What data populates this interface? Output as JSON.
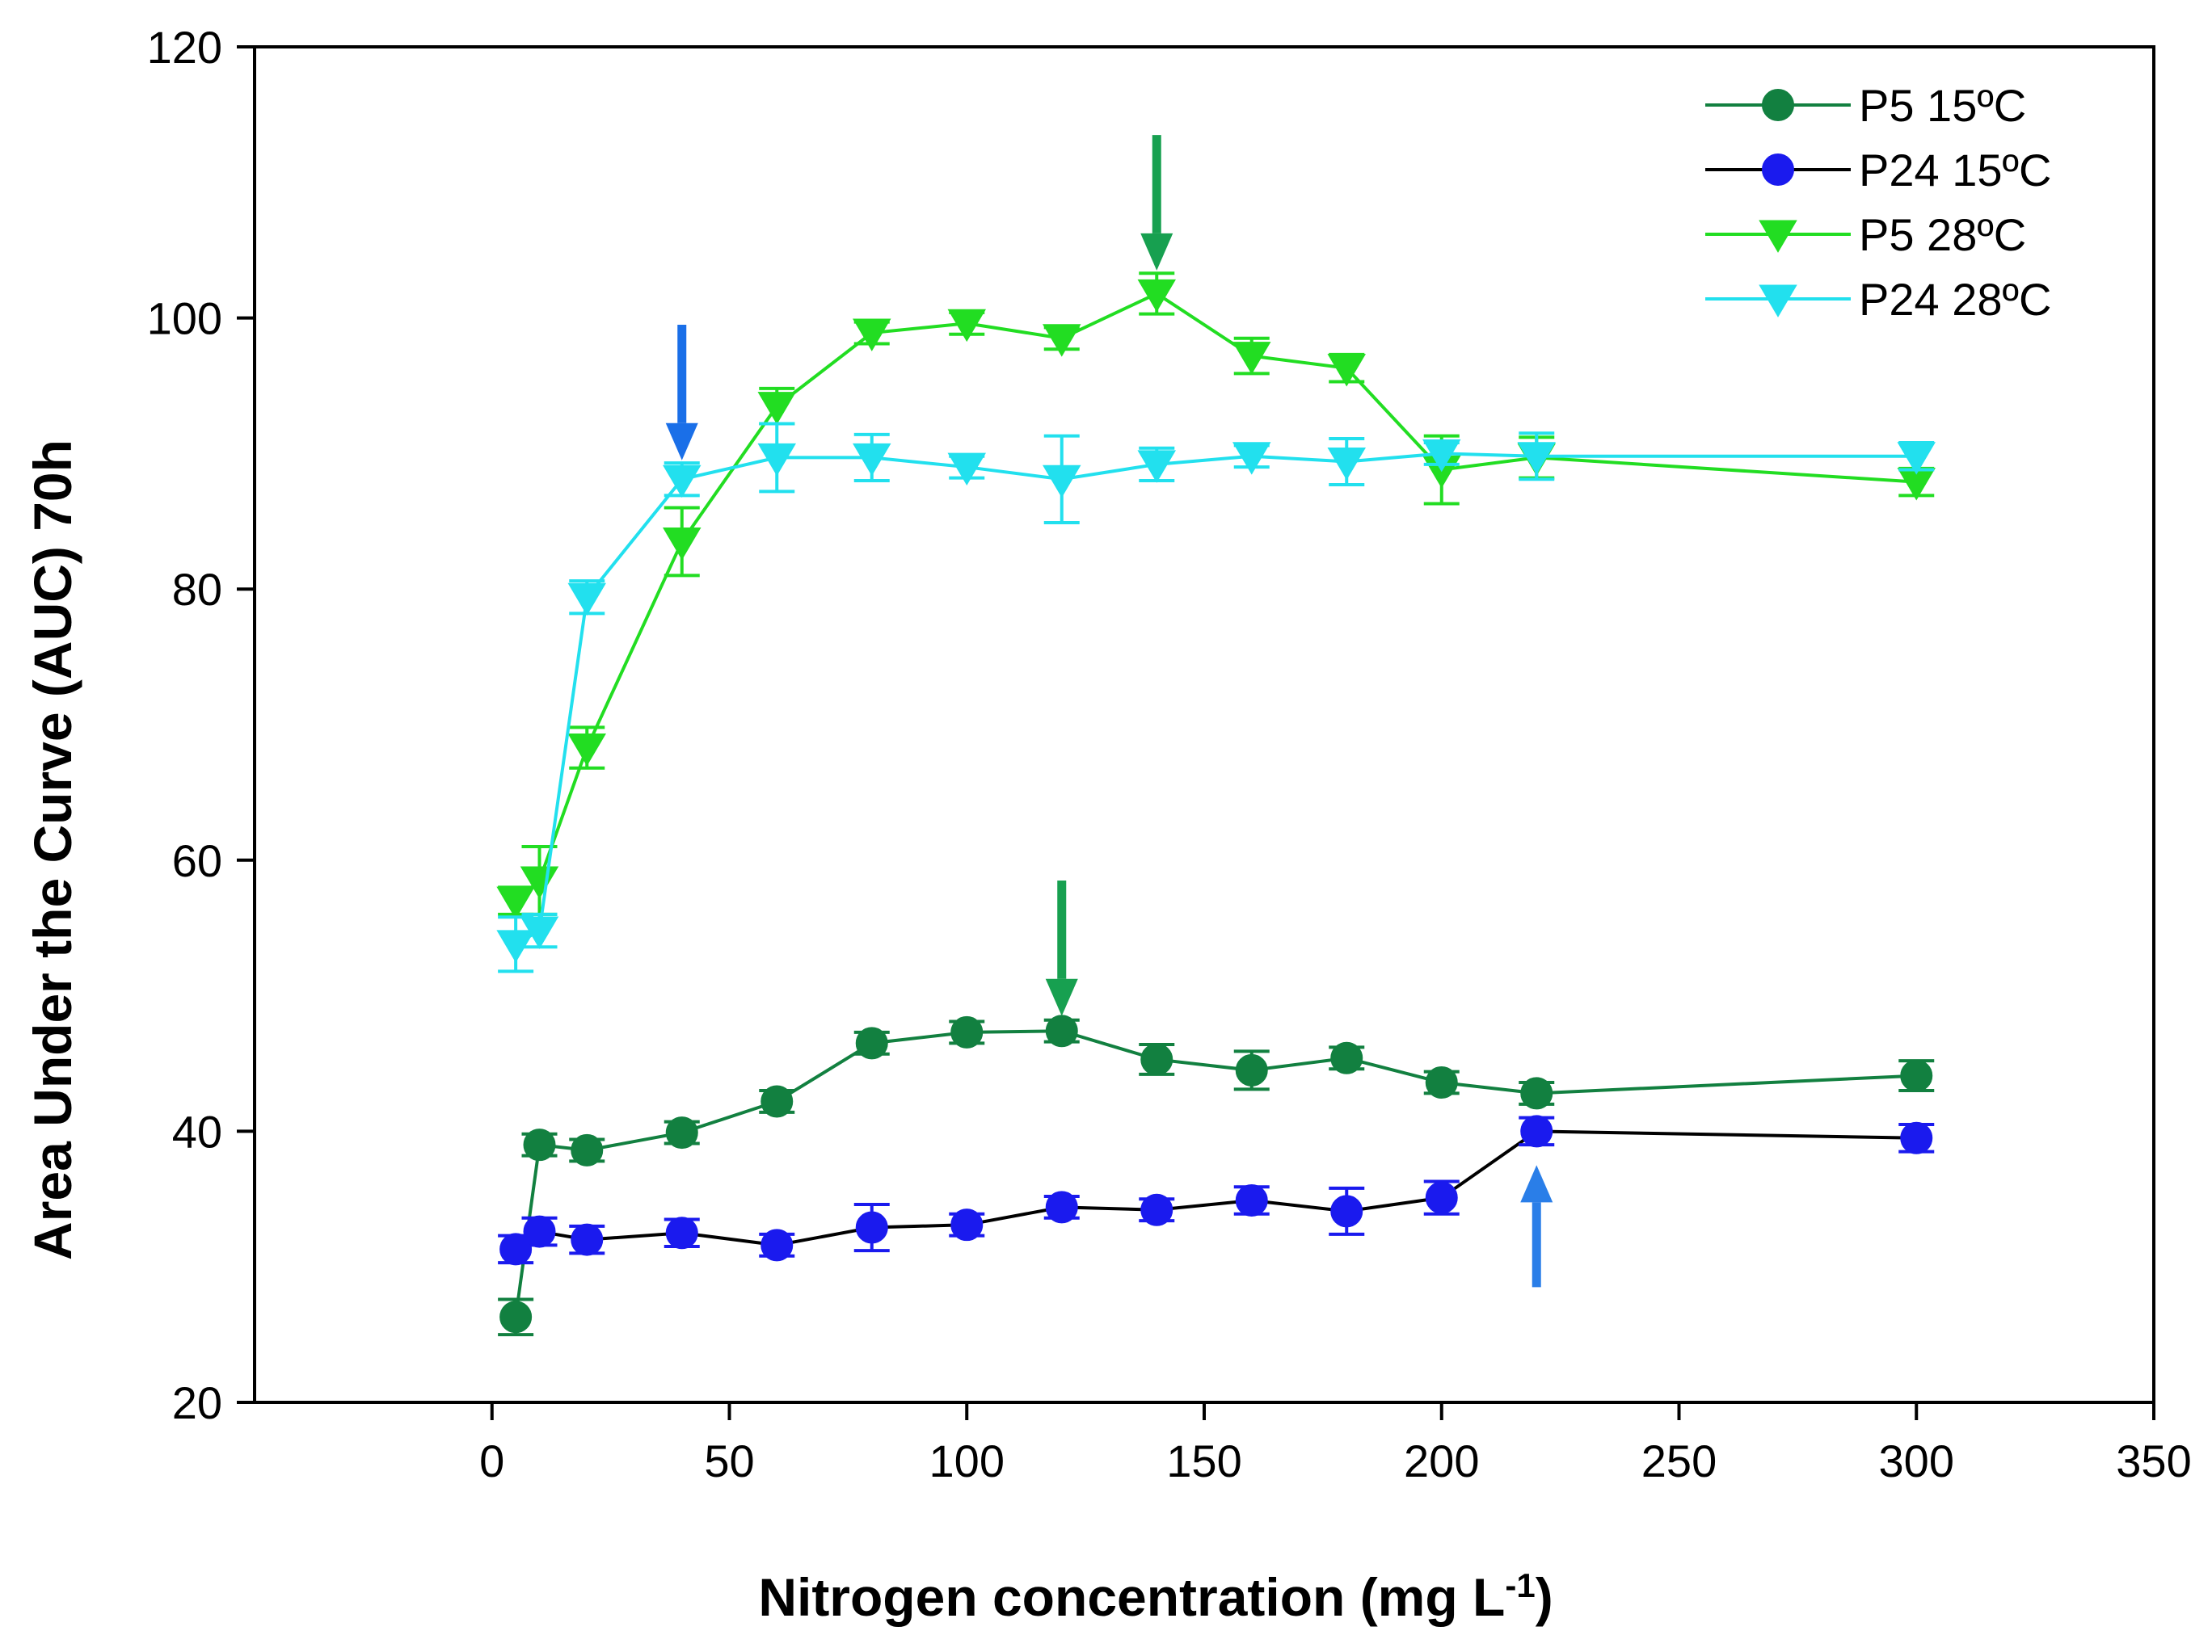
{
  "chart_data": {
    "type": "line",
    "title": "",
    "xlabel": "Nitrogen concentration (mg L",
    "xlabel_sup": "-1",
    "xlabel_end": ")",
    "ylabel": "Area Under the Curve (AUC) 70h",
    "xlim": [
      -50,
      350
    ],
    "ylim": [
      20,
      120
    ],
    "xticks": [
      0,
      50,
      100,
      150,
      200,
      250,
      300,
      350
    ],
    "yticks": [
      20,
      40,
      60,
      80,
      100,
      120
    ],
    "grid": false,
    "legend_position": "top-right",
    "series": [
      {
        "name": "P5 15ºC",
        "color": "#128040",
        "marker": "circle",
        "x": [
          5,
          10,
          20,
          40,
          60,
          80,
          100,
          120,
          140,
          160,
          180,
          200,
          220,
          300
        ],
        "y": [
          26.3,
          39.0,
          38.6,
          39.9,
          42.2,
          46.5,
          47.3,
          47.4,
          45.3,
          44.5,
          45.4,
          43.6,
          42.8,
          44.1
        ],
        "err": [
          1.3,
          0.8,
          0.8,
          0.8,
          0.8,
          0.8,
          0.8,
          0.8,
          1.1,
          1.4,
          0.8,
          0.8,
          0.8,
          1.1
        ]
      },
      {
        "name": "P24 15ºC",
        "color": "#1a1aee",
        "line_color": "#000000",
        "marker": "circle",
        "x": [
          5,
          10,
          20,
          40,
          60,
          80,
          100,
          120,
          140,
          160,
          180,
          200,
          220,
          300
        ],
        "y": [
          31.3,
          32.6,
          32.0,
          32.5,
          31.6,
          32.9,
          33.1,
          34.4,
          34.2,
          34.9,
          34.1,
          35.1,
          40.0,
          39.5
        ],
        "err": [
          1.0,
          1.0,
          1.0,
          1.0,
          0.8,
          1.7,
          0.8,
          0.8,
          0.8,
          1.0,
          1.7,
          1.2,
          1.0,
          1.0
        ]
      },
      {
        "name": "P5 28ºC",
        "color": "#22dd22",
        "marker": "triangle-down",
        "x": [
          5,
          10,
          20,
          40,
          60,
          80,
          100,
          120,
          140,
          160,
          180,
          200,
          220,
          300
        ],
        "y": [
          57.0,
          58.5,
          68.3,
          83.5,
          93.5,
          98.9,
          99.6,
          98.5,
          101.8,
          97.2,
          96.3,
          88.8,
          89.7,
          87.9
        ],
        "err": [
          1.0,
          2.5,
          1.5,
          2.5,
          1.3,
          0.8,
          0.8,
          0.8,
          1.5,
          1.3,
          1.0,
          2.5,
          1.5,
          1.0
        ]
      },
      {
        "name": "P24 28ºC",
        "color": "#22e0ee",
        "marker": "triangle-down",
        "x": [
          5,
          10,
          20,
          40,
          60,
          80,
          100,
          120,
          140,
          160,
          180,
          200,
          220,
          300
        ],
        "y": [
          53.8,
          54.8,
          79.4,
          88.1,
          89.7,
          89.7,
          89.0,
          88.1,
          89.2,
          89.8,
          89.4,
          90.0,
          89.8,
          89.8
        ],
        "err": [
          2.0,
          1.2,
          1.2,
          1.2,
          2.5,
          1.7,
          0.8,
          3.2,
          1.2,
          0.8,
          1.7,
          0.8,
          1.7,
          1.0
        ]
      }
    ],
    "annotations": [
      {
        "type": "arrow",
        "direction": "down",
        "x": 40,
        "y_from": 99.5,
        "y_to": 89.5,
        "color": "#1a6fe8"
      },
      {
        "type": "arrow",
        "direction": "down",
        "x": 140,
        "y_from": 113.5,
        "y_to": 103.5,
        "color": "#17a050"
      },
      {
        "type": "arrow",
        "direction": "down",
        "x": 120,
        "y_from": 58.5,
        "y_to": 48.5,
        "color": "#17a050"
      },
      {
        "type": "arrow",
        "direction": "up",
        "x": 220,
        "y_from": 28.5,
        "y_to": 37.5,
        "color": "#2a7ee8"
      }
    ]
  }
}
